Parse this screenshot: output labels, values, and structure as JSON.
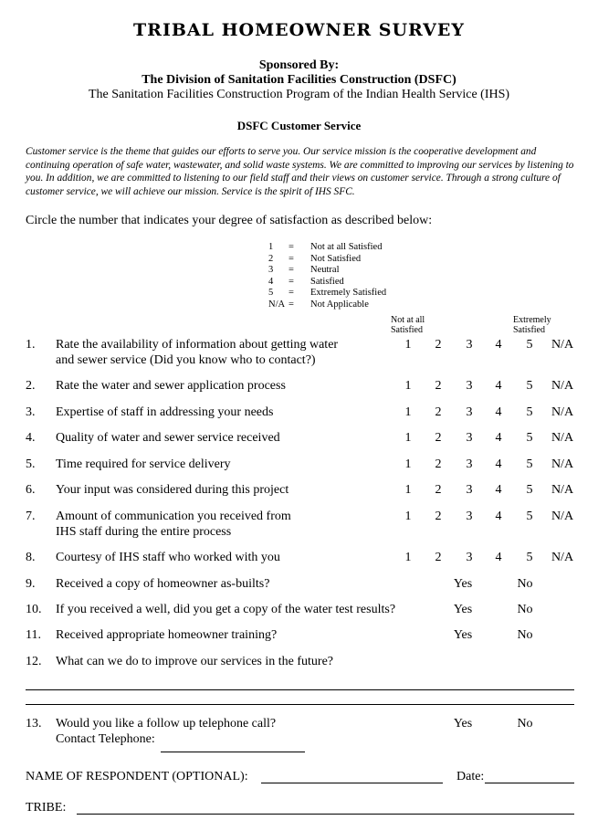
{
  "title": "TRIBAL HOMEOWNER SURVEY",
  "sponsor_label": "Sponsored By:",
  "division": "The Division of Sanitation Facilities Construction (DSFC)",
  "program": "The Sanitation Facilities Construction Program of the Indian Health Service (IHS)",
  "section_title": "DSFC Customer Service",
  "intro": "Customer service is the theme that guides our efforts to serve you.  Our service mission is the cooperative development and continuing operation of safe water, wastewater, and solid waste systems.  We are committed to improving our services by listening to you.  In addition, we are committed to listening to our field staff and their views on customer service.  Through a strong culture of customer service, we will achieve our mission.  Service is the spirit of IHS SFC.",
  "instruction": "Circle the number that indicates your degree of satisfaction as described below:",
  "legend": [
    {
      "k": "1",
      "eq": "=",
      "v": "Not at all Satisfied"
    },
    {
      "k": "2",
      "eq": "=",
      "v": "Not Satisfied"
    },
    {
      "k": "3",
      "eq": "=",
      "v": "Neutral"
    },
    {
      "k": "4",
      "eq": "=",
      "v": "Satisfied"
    },
    {
      "k": "5",
      "eq": "=",
      "v": "Extremely Satisfied"
    },
    {
      "k": "N/A",
      "eq": "=",
      "v": "Not Applicable"
    }
  ],
  "scale_low": [
    "Not at all",
    "Satisfied"
  ],
  "scale_high": [
    "Extremely",
    "Satisfied"
  ],
  "scale": [
    "1",
    "2",
    "3",
    "4",
    "5",
    "N/A"
  ],
  "yes": "Yes",
  "no": "No",
  "questions": [
    {
      "n": "1.",
      "t": "Rate the availability of information about getting water",
      "t2": "and sewer service (Did you know who to contact?)"
    },
    {
      "n": "2.",
      "t": "Rate the water and sewer application process"
    },
    {
      "n": "3.",
      "t": "Expertise of staff in addressing your needs"
    },
    {
      "n": "4.",
      "t": "Quality of water and sewer service received"
    },
    {
      "n": "5.",
      "t": "Time required for service delivery"
    },
    {
      "n": "6.",
      "t": "Your input was considered during this project"
    },
    {
      "n": "7.",
      "t": "Amount of communication you received from",
      "t2": "IHS staff during the entire process"
    },
    {
      "n": "8.",
      "t": "Courtesy of IHS staff who worked with you"
    },
    {
      "n": "9.",
      "t": "Received a copy of homeowner as-builts?"
    },
    {
      "n": "10.",
      "t": "If you received a well, did you get a copy of the water test results?"
    },
    {
      "n": "11.",
      "t": "Received appropriate homeowner training?"
    },
    {
      "n": "12.",
      "t": "What can we do to improve our services in the future?"
    },
    {
      "n": "13.",
      "t": "Would you like a follow up telephone call?",
      "t2": "Contact Telephone:"
    }
  ],
  "name_label": "NAME OF RESPONDENT (OPTIONAL):",
  "date_label": "Date:",
  "tribe_label": "TRIBE:"
}
